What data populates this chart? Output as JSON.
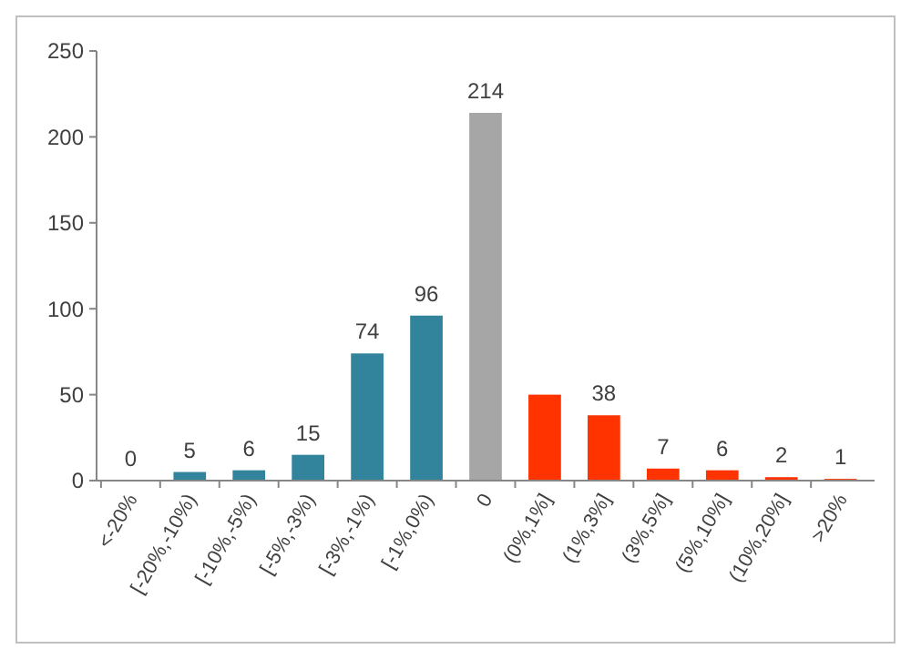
{
  "chart_data": {
    "type": "bar",
    "categories": [
      "<-20%",
      "[-20%,-10%)",
      "[-10%,-5%)",
      "[-5%,-3%)",
      "[-3%,-1%)",
      "[-1%,0%)",
      "0",
      "(0%,1%]",
      "(1%,3%]",
      "(3%,5%]",
      "(5%,10%]",
      "(10%,20%]",
      ">20%"
    ],
    "values": [
      0,
      5,
      6,
      15,
      74,
      96,
      214,
      50,
      38,
      7,
      6,
      2,
      1
    ],
    "colors": [
      "#31849b",
      "#31849b",
      "#31849b",
      "#31849b",
      "#31849b",
      "#31849b",
      "#a6a6a6",
      "#ff3300",
      "#ff3300",
      "#ff3300",
      "#ff3300",
      "#ff3300",
      "#ff3300"
    ],
    "value_labels": [
      "0",
      "5",
      "6",
      "15",
      "74",
      "96",
      "214",
      null,
      "38",
      "7",
      "6",
      "2",
      "1"
    ],
    "ylim": [
      0,
      250
    ],
    "yticks": [
      0,
      50,
      100,
      150,
      200,
      250
    ],
    "grid": false
  }
}
